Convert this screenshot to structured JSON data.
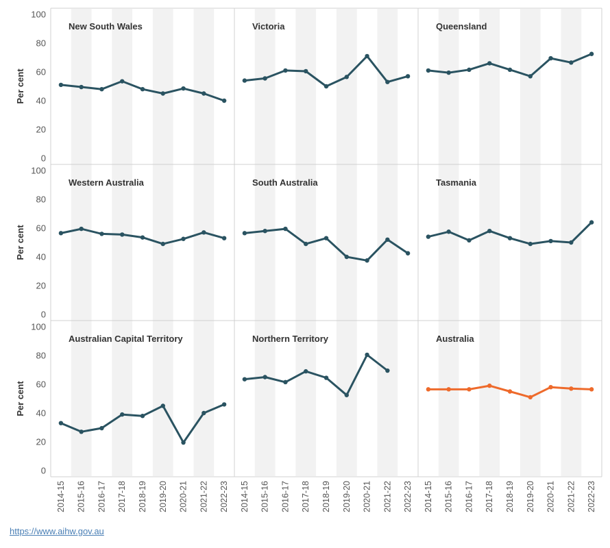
{
  "chart_data": {
    "type": "line",
    "layout": "small multiples, 3x3 grid",
    "ylabel": "Per cent",
    "ylim": [
      0,
      100
    ],
    "yticks": [
      0,
      20,
      40,
      60,
      80,
      100
    ],
    "categories": [
      "2014-15",
      "2015-16",
      "2016-17",
      "2017-18",
      "2018-19",
      "2019-20",
      "2020-21",
      "2021-22",
      "2022-23"
    ],
    "grid": "alternating shaded column bands",
    "colors": {
      "state": "#2a5361",
      "national": "#ee6a2b",
      "band": "#f2f2f2",
      "border": "#d0d0d0",
      "axis_text": "#555555"
    },
    "panels": [
      {
        "name": "New South Wales",
        "values": [
          51,
          49.5,
          48,
          53.5,
          48,
          45,
          48.5,
          45,
          40
        ]
      },
      {
        "name": "Victoria",
        "values": [
          54,
          55.5,
          61,
          60.5,
          50,
          56.5,
          71,
          53,
          57
        ]
      },
      {
        "name": "Queensland",
        "values": [
          61,
          59.5,
          61.5,
          66,
          61.5,
          57,
          69.5,
          66.5,
          72.5
        ]
      },
      {
        "name": "Western Australia",
        "values": [
          56.5,
          59.5,
          56,
          55.5,
          53.5,
          49,
          52.5,
          57,
          53
        ]
      },
      {
        "name": "South Australia",
        "values": [
          56.5,
          58,
          59.5,
          49,
          53,
          40,
          37.5,
          52,
          42.5
        ]
      },
      {
        "name": "Tasmania",
        "values": [
          54,
          57.5,
          51.5,
          58,
          53,
          49,
          51,
          50,
          64
        ]
      },
      {
        "name": "Australian Capital Territory",
        "values": [
          33,
          27,
          29.5,
          39,
          38,
          45,
          19.5,
          40,
          46
        ]
      },
      {
        "name": "Northern Territory",
        "values": [
          63.5,
          65,
          61.5,
          69,
          64.5,
          52.5,
          80.5,
          69.5,
          null
        ]
      },
      {
        "name": "Australia",
        "values": [
          56.5,
          56.5,
          56.5,
          59,
          55,
          51,
          58,
          57,
          56.5
        ],
        "highlight": true
      }
    ]
  },
  "source_link": "https://www.aihw.gov.au"
}
